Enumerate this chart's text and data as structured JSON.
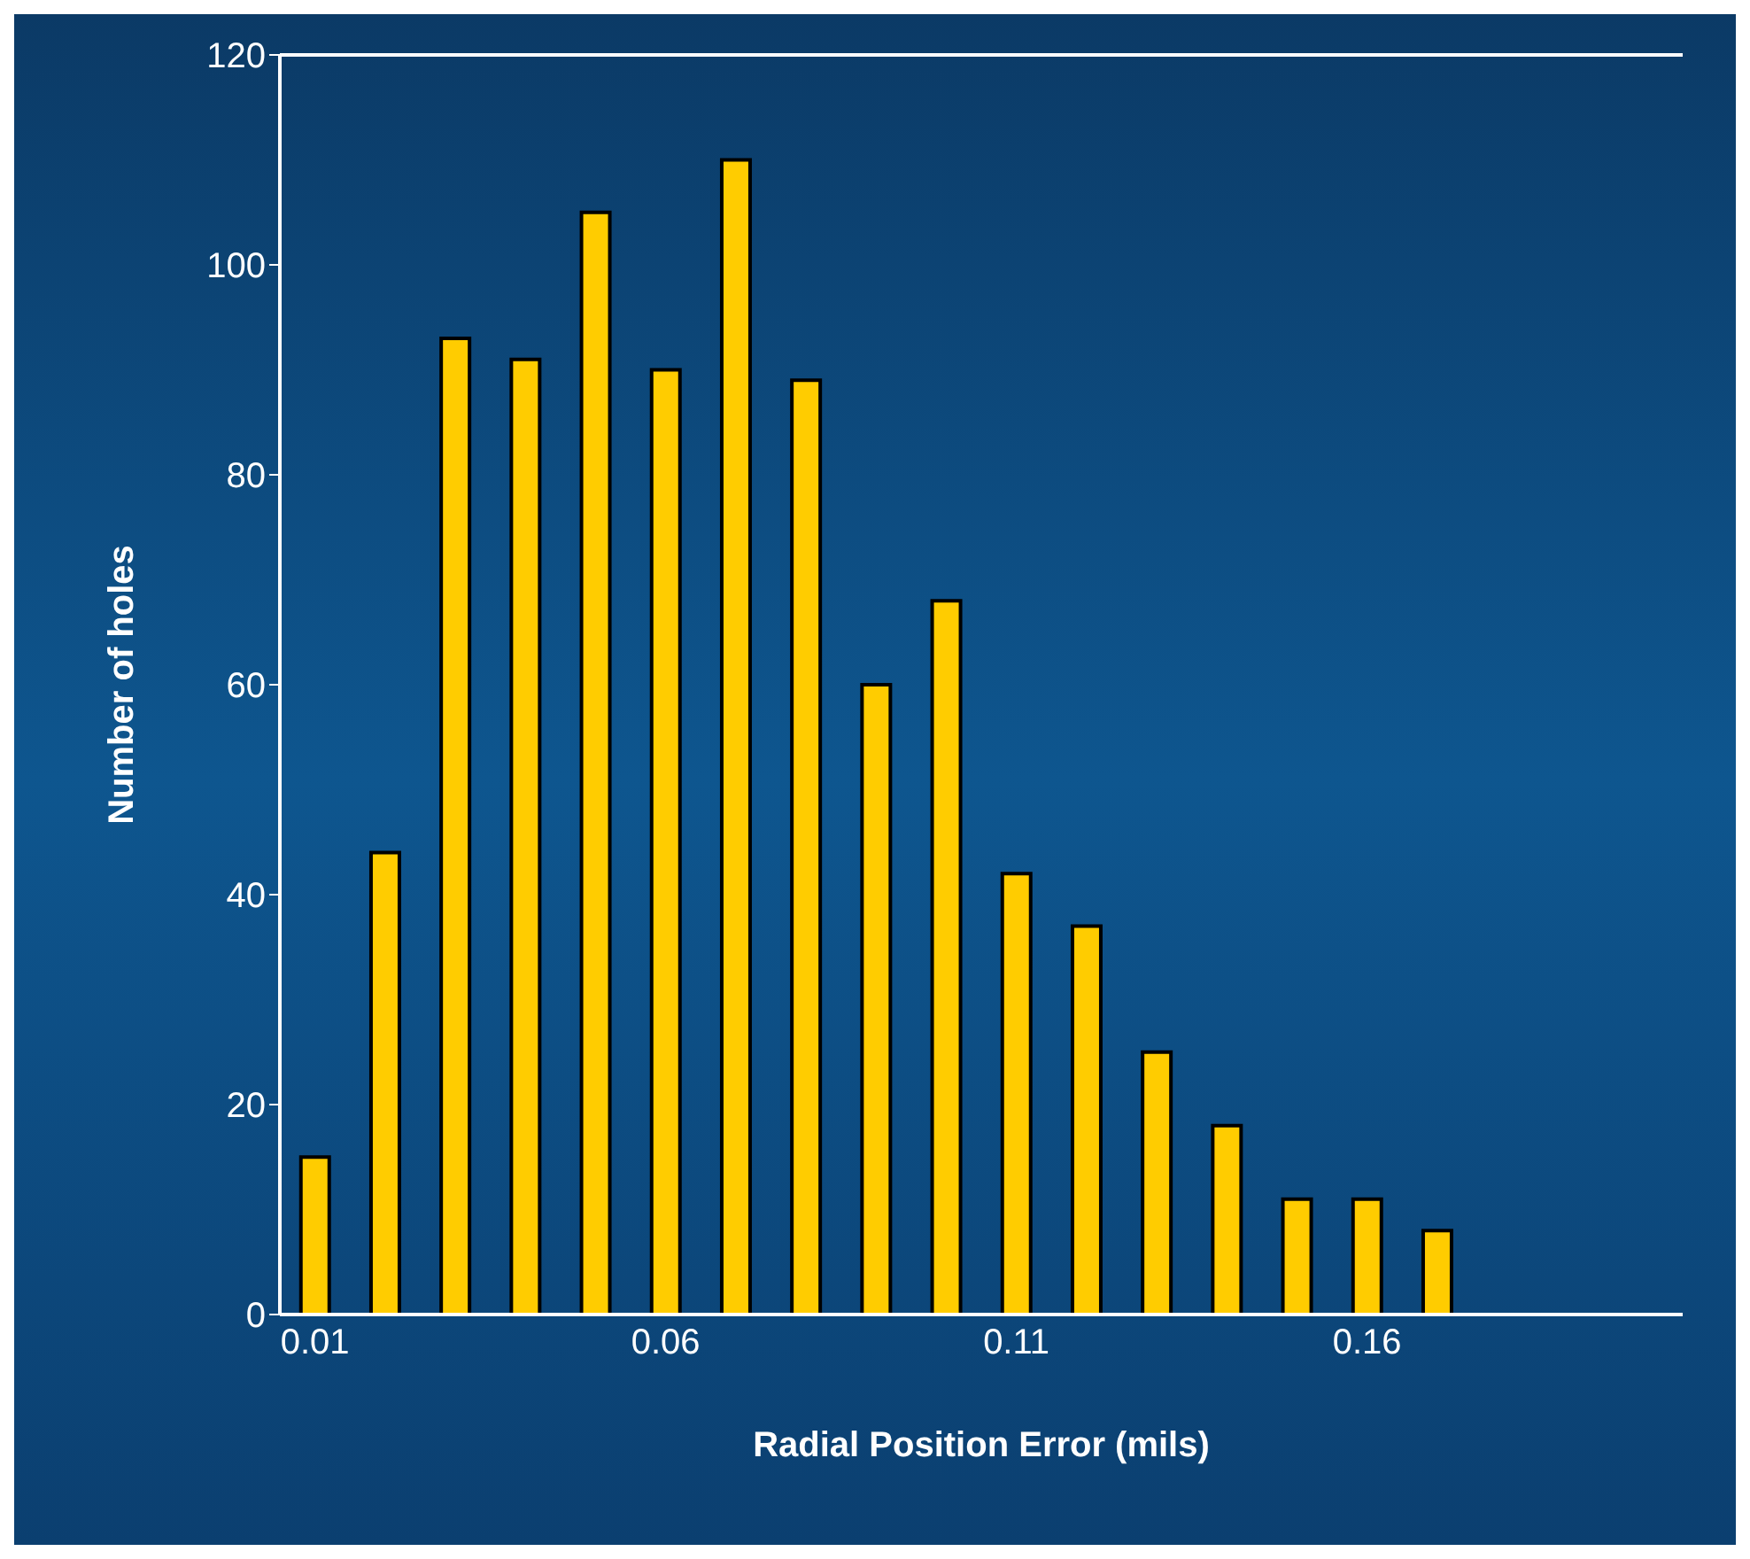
{
  "chart_data": {
    "type": "bar",
    "xlabel": "Radial Position Error (mils)",
    "ylabel": "Number of holes",
    "categories": [
      "0.01",
      null,
      null,
      null,
      null,
      "0.06",
      null,
      null,
      null,
      null,
      "0.11",
      null,
      null,
      null,
      null,
      "0.16",
      null,
      null,
      null,
      null
    ],
    "values": [
      15,
      44,
      93,
      91,
      105,
      90,
      110,
      89,
      60,
      68,
      42,
      37,
      25,
      18,
      11,
      11,
      8,
      null,
      null,
      null
    ],
    "color": "#ffcc00",
    "ylim": [
      0,
      120
    ],
    "yticks": [
      0,
      20,
      40,
      60,
      80,
      100,
      120
    ],
    "grid": false
  }
}
